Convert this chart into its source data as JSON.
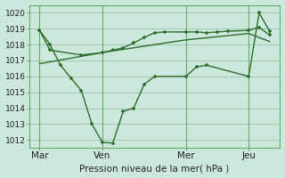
{
  "bg_color": "#cce8dc",
  "grid_color": "#a0c8b0",
  "line_color": "#2d6e2d",
  "vline_color": "#6aaa6a",
  "xlabel": "Pression niveau de la mer( hPa )",
  "ylim": [
    1011.5,
    1020.5
  ],
  "yticks": [
    1012,
    1013,
    1014,
    1015,
    1016,
    1017,
    1018,
    1019,
    1020
  ],
  "xtick_labels": [
    "Mar",
    "Ven",
    "Mer",
    "Jeu"
  ],
  "xtick_positions": [
    0,
    6,
    14,
    20
  ],
  "vline_positions": [
    0,
    6,
    14,
    20
  ],
  "xlim": [
    -1,
    23
  ],
  "line1_x": [
    0,
    1,
    2,
    3,
    4,
    5,
    6,
    7,
    8,
    9,
    10,
    11,
    14,
    15,
    16,
    20,
    21,
    22
  ],
  "line1_y": [
    1018.9,
    1018.0,
    1016.7,
    1015.9,
    1015.1,
    1013.0,
    1011.85,
    1011.8,
    1013.8,
    1014.0,
    1015.5,
    1016.0,
    1016.0,
    1016.6,
    1016.7,
    1016.0,
    1020.0,
    1018.85
  ],
  "line2_x": [
    0,
    6,
    14,
    20,
    22
  ],
  "line2_y": [
    1016.8,
    1017.5,
    1018.3,
    1018.7,
    1018.2
  ],
  "line3_x": [
    0,
    1,
    4,
    6,
    7,
    8,
    9,
    10,
    11,
    12,
    14,
    15,
    16,
    17,
    18,
    20,
    21,
    22
  ],
  "line3_y": [
    1018.9,
    1017.65,
    1017.35,
    1017.5,
    1017.65,
    1017.8,
    1018.1,
    1018.45,
    1018.75,
    1018.8,
    1018.8,
    1018.8,
    1018.75,
    1018.8,
    1018.85,
    1018.9,
    1019.1,
    1018.6
  ]
}
